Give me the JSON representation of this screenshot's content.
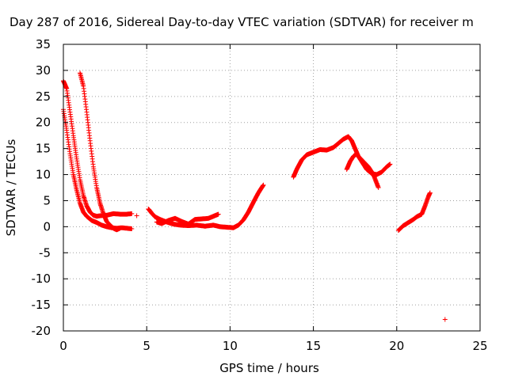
{
  "chart_data": {
    "type": "scatter",
    "title": "Day 287 of 2016, Sidereal Day-to-day VTEC variation (SDTVAR) for receiver m",
    "xlabel": "GPS time / hours",
    "ylabel": "SDTVAR / TECUs",
    "xlim": [
      0,
      25
    ],
    "ylim": [
      -20,
      35
    ],
    "xticks": [
      "0",
      "5",
      "10",
      "15",
      "20",
      "25"
    ],
    "yticks": [
      "-20",
      "-15",
      "-10",
      "-5",
      "0",
      "5",
      "10",
      "15",
      "20",
      "25",
      "30",
      "35"
    ],
    "grid": true,
    "marker": "+",
    "series": [
      {
        "name": "SDTVAR",
        "color": "#ff0000",
        "segments": [
          [
            [
              0.0,
              28.0
            ],
            [
              0.2,
              26.5
            ],
            [
              0.4,
              22.0
            ],
            [
              0.6,
              17.5
            ],
            [
              0.8,
              13.0
            ],
            [
              1.0,
              9.0
            ],
            [
              1.2,
              6.0
            ],
            [
              1.4,
              4.0
            ],
            [
              1.6,
              2.8
            ],
            [
              1.8,
              2.2
            ],
            [
              2.0,
              2.0
            ],
            [
              2.2,
              2.1
            ],
            [
              2.6,
              2.2
            ],
            [
              3.0,
              2.5
            ],
            [
              3.4,
              2.4
            ],
            [
              3.8,
              2.4
            ],
            [
              4.1,
              2.5
            ]
          ],
          [
            [
              0.0,
              22.5
            ],
            [
              0.2,
              18.5
            ],
            [
              0.4,
              14.0
            ],
            [
              0.6,
              10.0
            ],
            [
              0.8,
              7.0
            ],
            [
              1.0,
              4.5
            ],
            [
              1.2,
              2.8
            ],
            [
              1.4,
              2.0
            ],
            [
              1.7,
              1.2
            ],
            [
              2.0,
              0.8
            ],
            [
              2.3,
              0.3
            ],
            [
              2.6,
              0.0
            ],
            [
              2.9,
              -0.2
            ],
            [
              3.2,
              -0.3
            ],
            [
              3.5,
              -0.2
            ],
            [
              3.8,
              -0.3
            ],
            [
              4.1,
              -0.4
            ]
          ],
          [
            [
              1.0,
              29.5
            ],
            [
              1.2,
              27.0
            ],
            [
              1.4,
              22.0
            ],
            [
              1.6,
              16.5
            ],
            [
              1.8,
              11.5
            ],
            [
              2.0,
              7.5
            ],
            [
              2.2,
              4.5
            ],
            [
              2.4,
              2.5
            ],
            [
              2.6,
              1.0
            ],
            [
              2.8,
              0.3
            ],
            [
              3.0,
              -0.3
            ],
            [
              3.2,
              -0.6
            ],
            [
              3.4,
              -0.3
            ]
          ],
          [
            [
              4.4,
              2.1
            ]
          ],
          [
            [
              5.1,
              3.4
            ],
            [
              5.3,
              2.6
            ],
            [
              5.5,
              1.9
            ],
            [
              5.8,
              1.4
            ],
            [
              6.2,
              0.9
            ],
            [
              6.6,
              0.5
            ],
            [
              7.0,
              0.3
            ],
            [
              7.5,
              0.2
            ],
            [
              8.0,
              0.3
            ],
            [
              8.5,
              0.1
            ],
            [
              9.0,
              0.3
            ],
            [
              9.4,
              0.0
            ],
            [
              9.8,
              -0.1
            ],
            [
              10.2,
              -0.2
            ],
            [
              10.5,
              0.3
            ],
            [
              10.8,
              1.3
            ],
            [
              11.1,
              2.8
            ],
            [
              11.4,
              4.7
            ],
            [
              11.7,
              6.5
            ],
            [
              12.0,
              8.0
            ]
          ],
          [
            [
              5.6,
              0.9
            ],
            [
              5.9,
              0.6
            ],
            [
              6.3,
              1.2
            ],
            [
              6.7,
              1.6
            ],
            [
              7.1,
              1.0
            ],
            [
              7.5,
              0.5
            ],
            [
              7.9,
              1.4
            ],
            [
              8.3,
              1.5
            ],
            [
              8.7,
              1.6
            ],
            [
              9.0,
              2.0
            ],
            [
              9.3,
              2.4
            ]
          ],
          [
            [
              13.8,
              9.5
            ],
            [
              14.0,
              11.0
            ],
            [
              14.3,
              12.8
            ],
            [
              14.6,
              13.8
            ],
            [
              15.0,
              14.3
            ],
            [
              15.4,
              14.8
            ],
            [
              15.8,
              14.7
            ],
            [
              16.2,
              15.2
            ],
            [
              16.5,
              16.0
            ],
            [
              16.8,
              16.8
            ],
            [
              17.1,
              17.3
            ],
            [
              17.3,
              16.5
            ],
            [
              17.5,
              15.0
            ],
            [
              17.7,
              13.5
            ],
            [
              18.0,
              12.5
            ],
            [
              18.3,
              11.5
            ],
            [
              18.6,
              10.0
            ],
            [
              18.9,
              7.5
            ]
          ],
          [
            [
              17.0,
              11.0
            ],
            [
              17.2,
              12.5
            ],
            [
              17.4,
              13.5
            ],
            [
              17.6,
              14.0
            ],
            [
              17.9,
              12.5
            ],
            [
              18.2,
              11.0
            ],
            [
              18.5,
              10.2
            ],
            [
              18.8,
              10.0
            ],
            [
              19.1,
              10.5
            ],
            [
              19.4,
              11.5
            ],
            [
              19.6,
              12.0
            ]
          ],
          [
            [
              20.1,
              -0.7
            ],
            [
              20.4,
              0.2
            ],
            [
              20.7,
              0.8
            ],
            [
              21.0,
              1.4
            ],
            [
              21.2,
              1.9
            ],
            [
              21.5,
              2.4
            ],
            [
              21.7,
              4.0
            ],
            [
              21.9,
              5.8
            ],
            [
              22.0,
              6.5
            ]
          ],
          [
            [
              22.9,
              -17.8
            ]
          ]
        ]
      }
    ]
  }
}
